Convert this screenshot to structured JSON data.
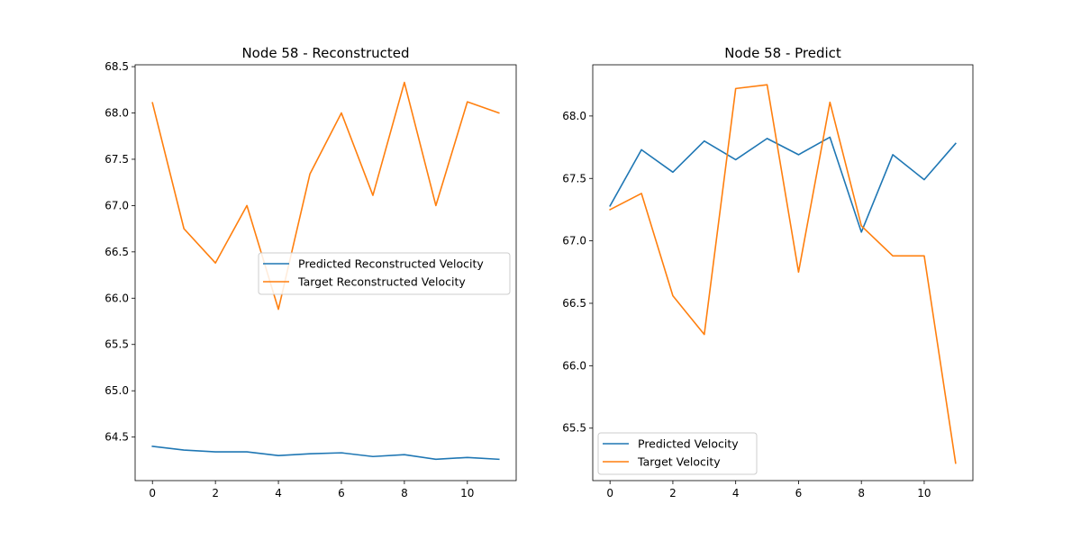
{
  "colors": {
    "predicted": "#1f77b4",
    "target": "#ff7f0e"
  },
  "chart_data": [
    {
      "type": "line",
      "title": "Node 58 - Reconstructed",
      "xlabel": "",
      "ylabel": "",
      "x": [
        0,
        1,
        2,
        3,
        4,
        5,
        6,
        7,
        8,
        9,
        10,
        11
      ],
      "xlim": [
        -0.55,
        11.55
      ],
      "ylim": [
        64.03,
        68.52
      ],
      "xticks": [
        0,
        2,
        4,
        6,
        8,
        10
      ],
      "yticks": [
        64.5,
        65.0,
        65.5,
        66.0,
        66.5,
        67.0,
        67.5,
        68.0,
        68.5
      ],
      "grid": false,
      "legend": "center-right",
      "series": [
        {
          "name": "Predicted Reconstructed Velocity",
          "color": "#1f77b4",
          "values": [
            64.4,
            64.36,
            64.34,
            64.34,
            64.3,
            64.32,
            64.33,
            64.29,
            64.31,
            64.26,
            64.28,
            64.26
          ]
        },
        {
          "name": "Target Reconstructed Velocity",
          "color": "#ff7f0e",
          "values": [
            68.11,
            66.75,
            66.38,
            67.0,
            65.88,
            67.34,
            68.0,
            67.11,
            68.33,
            67.0,
            68.12,
            68.0
          ]
        }
      ]
    },
    {
      "type": "line",
      "title": "Node 58 - Predict",
      "xlabel": "",
      "ylabel": "",
      "x": [
        0,
        1,
        2,
        3,
        4,
        5,
        6,
        7,
        8,
        9,
        10,
        11
      ],
      "xlim": [
        -0.55,
        11.55
      ],
      "ylim": [
        65.08,
        68.41
      ],
      "xticks": [
        0,
        2,
        4,
        6,
        8,
        10
      ],
      "yticks": [
        65.5,
        66.0,
        66.5,
        67.0,
        67.5,
        68.0
      ],
      "grid": false,
      "legend": "lower-left",
      "series": [
        {
          "name": "Predicted Velocity",
          "color": "#1f77b4",
          "values": [
            67.28,
            67.73,
            67.55,
            67.8,
            67.65,
            67.82,
            67.69,
            67.83,
            67.07,
            67.69,
            67.49,
            67.78
          ]
        },
        {
          "name": "Target Velocity",
          "color": "#ff7f0e",
          "values": [
            67.25,
            67.38,
            66.56,
            66.25,
            68.22,
            68.25,
            66.75,
            68.11,
            67.12,
            66.88,
            66.88,
            65.22
          ]
        }
      ]
    }
  ]
}
